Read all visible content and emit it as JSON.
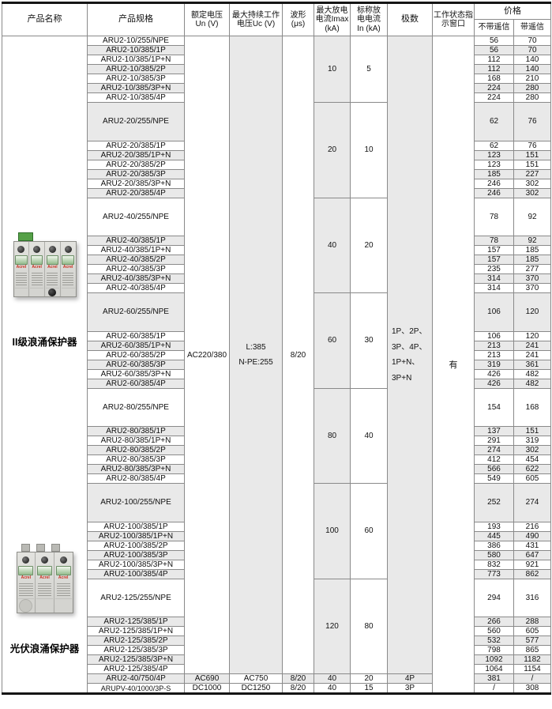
{
  "header": {
    "product_name": "产品名称",
    "spec": "产品规格",
    "rated1": "额定电压",
    "rated2": "Un (V)",
    "maxv1": "最大持续工作",
    "maxv2": "电压Uc (V)",
    "wave1": "波形",
    "wave2": "(μs)",
    "imax1": "最大放电",
    "imax2": "电流Imax",
    "imax3": "(kA)",
    "in1": "标称放",
    "in2": "电电流",
    "in3": "In (kA)",
    "poles": "极数",
    "status1": "工作状态指",
    "status2": "示窗口",
    "price": "价格",
    "price_no_remote": "不带遥信",
    "price_remote": "带遥信"
  },
  "shared": {
    "rated_voltage": "AC220/380",
    "max_voltage_lines": [
      "L:385",
      "N-PE:255"
    ],
    "waveform": "8/20",
    "poles_lines": [
      "1P、2P、",
      "3P、4P、",
      "1P+N、",
      "3P+N"
    ],
    "status_indicator": "有"
  },
  "products": [
    {
      "name": "II级浪涌保护器",
      "modules": 4,
      "brand": "Acrel"
    },
    {
      "name": "光伏浪涌保护器",
      "modules": 3,
      "brand": "Acrel"
    }
  ],
  "groups": [
    {
      "imax": "10",
      "in": "5"
    },
    {
      "imax": "20",
      "in": "10"
    },
    {
      "imax": "40",
      "in": "20"
    },
    {
      "imax": "60",
      "in": "30"
    },
    {
      "imax": "80",
      "in": "40"
    },
    {
      "imax": "100",
      "in": "60"
    },
    {
      "imax": "120",
      "in": "80"
    }
  ],
  "rows": [
    {
      "spec": "ARU2-10/255/NPE",
      "price_plain": "56",
      "price_remote": "70"
    },
    {
      "spec": "ARU2-10/385/1P",
      "price_plain": "56",
      "price_remote": "70"
    },
    {
      "spec": "ARU2-10/385/1P+N",
      "price_plain": "112",
      "price_remote": "140"
    },
    {
      "spec": "ARU2-10/385/2P",
      "price_plain": "112",
      "price_remote": "140"
    },
    {
      "spec": "ARU2-10/385/3P",
      "price_plain": "168",
      "price_remote": "210"
    },
    {
      "spec": "ARU2-10/385/3P+N",
      "price_plain": "224",
      "price_remote": "280"
    },
    {
      "spec": "ARU2-10/385/4P",
      "price_plain": "224",
      "price_remote": "280"
    },
    {
      "spec": "ARU2-20/255/NPE",
      "price_plain": "62",
      "price_remote": "76"
    },
    {
      "spec": "ARU2-20/385/1P",
      "price_plain": "62",
      "price_remote": "76"
    },
    {
      "spec": "ARU2-20/385/1P+N",
      "price_plain": "123",
      "price_remote": "151"
    },
    {
      "spec": "ARU2-20/385/2P",
      "price_plain": "123",
      "price_remote": "151"
    },
    {
      "spec": "ARU2-20/385/3P",
      "price_plain": "185",
      "price_remote": "227"
    },
    {
      "spec": "ARU2-20/385/3P+N",
      "price_plain": "246",
      "price_remote": "302"
    },
    {
      "spec": "ARU2-20/385/4P",
      "price_plain": "246",
      "price_remote": "302"
    },
    {
      "spec": "ARU2-40/255/NPE",
      "price_plain": "78",
      "price_remote": "92"
    },
    {
      "spec": "ARU2-40/385/1P",
      "price_plain": "78",
      "price_remote": "92"
    },
    {
      "spec": "ARU2-40/385/1P+N",
      "price_plain": "157",
      "price_remote": "185"
    },
    {
      "spec": "ARU2-40/385/2P",
      "price_plain": "157",
      "price_remote": "185"
    },
    {
      "spec": "ARU2-40/385/3P",
      "price_plain": "235",
      "price_remote": "277"
    },
    {
      "spec": "ARU2-40/385/3P+N",
      "price_plain": "314",
      "price_remote": "370"
    },
    {
      "spec": "ARU2-40/385/4P",
      "price_plain": "314",
      "price_remote": "370"
    },
    {
      "spec": "ARU2-60/255/NPE",
      "price_plain": "106",
      "price_remote": "120"
    },
    {
      "spec": "ARU2-60/385/1P",
      "price_plain": "106",
      "price_remote": "120"
    },
    {
      "spec": "ARU2-60/385/1P+N",
      "price_plain": "213",
      "price_remote": "241"
    },
    {
      "spec": "ARU2-60/385/2P",
      "price_plain": "213",
      "price_remote": "241"
    },
    {
      "spec": "ARU2-60/385/3P",
      "price_plain": "319",
      "price_remote": "361"
    },
    {
      "spec": "ARU2-60/385/3P+N",
      "price_plain": "426",
      "price_remote": "482"
    },
    {
      "spec": "ARU2-60/385/4P",
      "price_plain": "426",
      "price_remote": "482"
    },
    {
      "spec": "ARU2-80/255/NPE",
      "price_plain": "154",
      "price_remote": "168"
    },
    {
      "spec": "ARU2-80/385/1P",
      "price_plain": "137",
      "price_remote": "151"
    },
    {
      "spec": "ARU2-80/385/1P+N",
      "price_plain": "291",
      "price_remote": "319"
    },
    {
      "spec": "ARU2-80/385/2P",
      "price_plain": "274",
      "price_remote": "302"
    },
    {
      "spec": "ARU2-80/385/3P",
      "price_plain": "412",
      "price_remote": "454"
    },
    {
      "spec": "ARU2-80/385/3P+N",
      "price_plain": "566",
      "price_remote": "622"
    },
    {
      "spec": "ARU2-80/385/4P",
      "price_plain": "549",
      "price_remote": "605"
    },
    {
      "spec": "ARU2-100/255/NPE",
      "price_plain": "252",
      "price_remote": "274"
    },
    {
      "spec": "ARU2-100/385/1P",
      "price_plain": "193",
      "price_remote": "216"
    },
    {
      "spec": "ARU2-100/385/1P+N",
      "price_plain": "445",
      "price_remote": "490"
    },
    {
      "spec": "ARU2-100/385/2P",
      "price_plain": "386",
      "price_remote": "431"
    },
    {
      "spec": "ARU2-100/385/3P",
      "price_plain": "580",
      "price_remote": "647"
    },
    {
      "spec": "ARU2-100/385/3P+N",
      "price_plain": "832",
      "price_remote": "921"
    },
    {
      "spec": "ARU2-100/385/4P",
      "price_plain": "773",
      "price_remote": "862"
    },
    {
      "spec": "ARU2-125/255/NPE",
      "price_plain": "294",
      "price_remote": "316"
    },
    {
      "spec": "ARU2-125/385/1P",
      "price_plain": "266",
      "price_remote": "288"
    },
    {
      "spec": "ARU2-125/385/1P+N",
      "price_plain": "560",
      "price_remote": "605"
    },
    {
      "spec": "ARU2-125/385/2P",
      "price_plain": "532",
      "price_remote": "577"
    },
    {
      "spec": "ARU2-125/385/3P",
      "price_plain": "798",
      "price_remote": "865"
    },
    {
      "spec": "ARU2-125/385/3P+N",
      "price_plain": "1092",
      "price_remote": "1182"
    },
    {
      "spec": "ARU2-125/385/4P",
      "price_plain": "1064",
      "price_remote": "1154"
    }
  ],
  "special_rows": [
    {
      "spec": "ARU2-40/750/4P",
      "un": "AC690",
      "uc": "AC750",
      "wave": "8/20",
      "imax": "40",
      "in": "20",
      "poles": "4P",
      "price_plain": "381",
      "price_remote": "/"
    },
    {
      "spec": "ARUPV-40/1000/3P-S",
      "un": "DC1000",
      "uc": "DC1250",
      "wave": "8/20",
      "imax": "40",
      "in": "15",
      "poles": "3P",
      "price_plain": "/",
      "price_remote": "308"
    }
  ],
  "colors": {
    "row_alt": "#e9e9e9",
    "grid": "#8a8a8a",
    "frame": "#151515",
    "brand_red": "#cc2b1d",
    "device_green": "#55a047"
  }
}
